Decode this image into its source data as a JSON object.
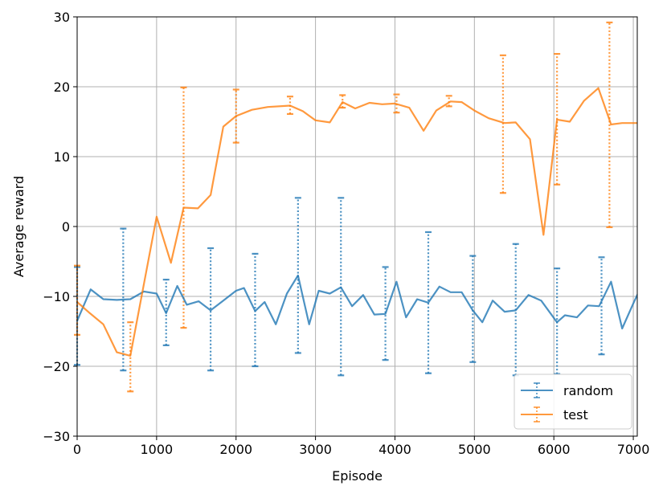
{
  "chart_data": {
    "type": "line",
    "title": "",
    "xlabel": "Episode",
    "ylabel": "Average reward",
    "xlim": [
      0,
      7050
    ],
    "ylim": [
      -30,
      30
    ],
    "x_ticks": [
      0,
      1000,
      2000,
      3000,
      4000,
      5000,
      6000,
      7000
    ],
    "y_ticks": [
      -30,
      -20,
      -10,
      0,
      10,
      20,
      30
    ],
    "grid": true,
    "legend_position": "lower-right",
    "legend_labels": [
      "random",
      "test"
    ],
    "series": [
      {
        "name": "random",
        "color": "#1f77b4",
        "x": [
          0,
          170,
          330,
          500,
          670,
          840,
          1000,
          1120,
          1260,
          1380,
          1530,
          1680,
          1840,
          2000,
          2100,
          2240,
          2360,
          2500,
          2640,
          2780,
          2920,
          3040,
          3180,
          3320,
          3460,
          3600,
          3740,
          3880,
          4020,
          4140,
          4280,
          4420,
          4560,
          4700,
          4840,
          4980,
          5100,
          5230,
          5380,
          5520,
          5680,
          5840,
          6040,
          6140,
          6290,
          6430,
          6570,
          6720,
          6860,
          7000,
          7100
        ],
        "values": [
          -13.5,
          -9.0,
          -10.4,
          -10.5,
          -10.4,
          -9.3,
          -9.6,
          -12.4,
          -8.5,
          -11.2,
          -10.7,
          -12.0,
          -10.6,
          -9.2,
          -8.8,
          -12.1,
          -10.8,
          -14.0,
          -9.6,
          -7.0,
          -14.0,
          -9.2,
          -9.6,
          -8.7,
          -11.4,
          -9.8,
          -12.6,
          -12.5,
          -7.9,
          -13.0,
          -10.4,
          -10.9,
          -8.6,
          -9.4,
          -9.4,
          -12.0,
          -13.7,
          -10.6,
          -12.2,
          -12.0,
          -9.8,
          -10.6,
          -13.7,
          -12.7,
          -13.0,
          -11.3,
          -11.4,
          -7.9,
          -14.6,
          -11.0,
          -8.6
        ],
        "errors": [
          {
            "x": 0,
            "low": -19.8,
            "high": -5.8
          },
          {
            "x": 580,
            "low": -20.6,
            "high": -0.3
          },
          {
            "x": 1120,
            "low": -17.0,
            "high": -7.6
          },
          {
            "x": 1680,
            "low": -20.6,
            "high": -3.1
          },
          {
            "x": 2240,
            "low": -20.0,
            "high": -3.9
          },
          {
            "x": 2780,
            "low": -18.1,
            "high": 4.1
          },
          {
            "x": 3320,
            "low": -21.3,
            "high": 4.1
          },
          {
            "x": 3880,
            "low": -19.1,
            "high": -5.8
          },
          {
            "x": 4420,
            "low": -21.0,
            "high": -0.8
          },
          {
            "x": 4980,
            "low": -19.4,
            "high": -4.2
          },
          {
            "x": 5520,
            "low": -21.3,
            "high": -2.5
          },
          {
            "x": 6040,
            "low": -21.1,
            "high": -6.0
          },
          {
            "x": 6600,
            "low": -18.3,
            "high": -4.4
          }
        ]
      },
      {
        "name": "test",
        "color": "#ff7f0e",
        "x": [
          0,
          160,
          330,
          500,
          670,
          1000,
          1180,
          1340,
          1520,
          1680,
          1840,
          2000,
          2200,
          2400,
          2680,
          2840,
          3000,
          3180,
          3340,
          3500,
          3680,
          3840,
          4000,
          4180,
          4360,
          4520,
          4700,
          4840,
          5000,
          5180,
          5380,
          5520,
          5700,
          5870,
          6040,
          6200,
          6380,
          6560,
          6720,
          6860,
          7050
        ],
        "values": [
          -10.8,
          -12.4,
          -14.0,
          -18.0,
          -18.5,
          1.4,
          -5.2,
          2.7,
          2.6,
          4.5,
          14.3,
          15.8,
          16.7,
          17.1,
          17.3,
          16.5,
          15.2,
          14.9,
          17.8,
          16.9,
          17.7,
          17.5,
          17.6,
          17.0,
          13.7,
          16.6,
          17.9,
          17.8,
          16.6,
          15.5,
          14.8,
          14.9,
          12.5,
          -1.2,
          15.3,
          15.0,
          18.0,
          19.8,
          14.6,
          14.8,
          14.8
        ],
        "errors": [
          {
            "x": 0,
            "low": -15.5,
            "high": -5.6
          },
          {
            "x": 670,
            "low": -23.6,
            "high": -13.7
          },
          {
            "x": 1340,
            "low": -14.5,
            "high": 19.9
          },
          {
            "x": 2000,
            "low": 12.0,
            "high": 19.6
          },
          {
            "x": 2680,
            "low": 16.1,
            "high": 18.6
          },
          {
            "x": 3340,
            "low": 17.0,
            "high": 18.8
          },
          {
            "x": 4020,
            "low": 16.3,
            "high": 18.9
          },
          {
            "x": 4680,
            "low": 17.2,
            "high": 18.7
          },
          {
            "x": 5360,
            "low": 4.8,
            "high": 24.5
          },
          {
            "x": 6040,
            "low": 6.0,
            "high": 24.7
          },
          {
            "x": 6700,
            "low": -0.1,
            "high": 29.2
          }
        ]
      }
    ]
  }
}
